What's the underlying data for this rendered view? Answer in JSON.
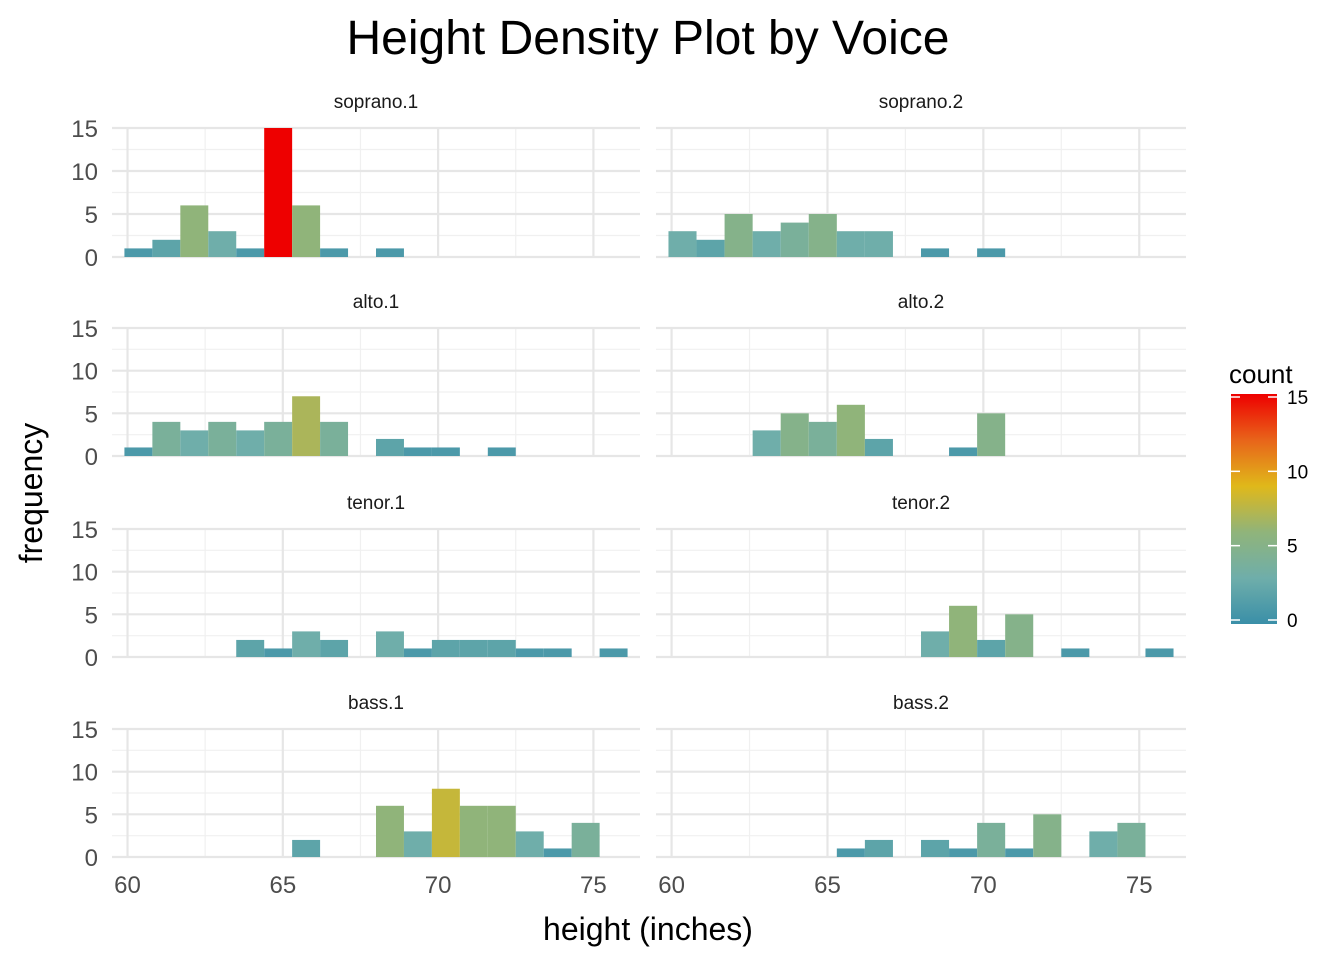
{
  "chart_data": {
    "type": "bar",
    "title": "Height Density Plot by Voice",
    "xlabel": "height (inches)",
    "ylabel": "frequency",
    "xlim": [
      59.5,
      76.5
    ],
    "ylim": [
      0,
      15
    ],
    "x_ticks": [
      60,
      65,
      70,
      75
    ],
    "y_ticks": [
      0,
      5,
      10,
      15
    ],
    "bin_width": 0.9,
    "bin_start": 59.5,
    "legend": {
      "title": "count",
      "placement": "right",
      "min": 0,
      "max": 15,
      "ticks": [
        0,
        5,
        10,
        15
      ],
      "colors": [
        "#3a8fa8",
        "#6faeaa",
        "#90b47a",
        "#e0b81a",
        "#e8641a",
        "#ee0000"
      ]
    },
    "grid": true,
    "panels": [
      {
        "name": "soprano.1",
        "bins": [
          {
            "x": 60.35,
            "count": 1
          },
          {
            "x": 61.25,
            "count": 2
          },
          {
            "x": 62.15,
            "count": 6
          },
          {
            "x": 63.05,
            "count": 3
          },
          {
            "x": 63.95,
            "count": 1
          },
          {
            "x": 64.85,
            "count": 15
          },
          {
            "x": 65.75,
            "count": 6
          },
          {
            "x": 66.65,
            "count": 1
          },
          {
            "x": 68.45,
            "count": 1
          }
        ]
      },
      {
        "name": "soprano.2",
        "bins": [
          {
            "x": 60.35,
            "count": 3
          },
          {
            "x": 61.25,
            "count": 2
          },
          {
            "x": 62.15,
            "count": 5
          },
          {
            "x": 63.05,
            "count": 3
          },
          {
            "x": 63.95,
            "count": 4
          },
          {
            "x": 64.85,
            "count": 5
          },
          {
            "x": 65.75,
            "count": 3
          },
          {
            "x": 66.65,
            "count": 3
          },
          {
            "x": 68.45,
            "count": 1
          },
          {
            "x": 70.25,
            "count": 1
          }
        ]
      },
      {
        "name": "alto.1",
        "bins": [
          {
            "x": 60.35,
            "count": 1
          },
          {
            "x": 61.25,
            "count": 4
          },
          {
            "x": 62.15,
            "count": 3
          },
          {
            "x": 63.05,
            "count": 4
          },
          {
            "x": 63.95,
            "count": 3
          },
          {
            "x": 64.85,
            "count": 4
          },
          {
            "x": 65.75,
            "count": 7
          },
          {
            "x": 66.65,
            "count": 4
          },
          {
            "x": 68.45,
            "count": 2
          },
          {
            "x": 69.35,
            "count": 1
          },
          {
            "x": 70.25,
            "count": 1
          },
          {
            "x": 72.05,
            "count": 1
          }
        ]
      },
      {
        "name": "alto.2",
        "bins": [
          {
            "x": 63.05,
            "count": 3
          },
          {
            "x": 63.95,
            "count": 5
          },
          {
            "x": 64.85,
            "count": 4
          },
          {
            "x": 65.75,
            "count": 6
          },
          {
            "x": 66.65,
            "count": 2
          },
          {
            "x": 69.35,
            "count": 1
          },
          {
            "x": 70.25,
            "count": 5
          }
        ]
      },
      {
        "name": "tenor.1",
        "bins": [
          {
            "x": 63.95,
            "count": 2
          },
          {
            "x": 64.85,
            "count": 1
          },
          {
            "x": 65.75,
            "count": 3
          },
          {
            "x": 66.65,
            "count": 2
          },
          {
            "x": 68.45,
            "count": 3
          },
          {
            "x": 69.35,
            "count": 1
          },
          {
            "x": 70.25,
            "count": 2
          },
          {
            "x": 71.15,
            "count": 2
          },
          {
            "x": 72.05,
            "count": 2
          },
          {
            "x": 72.95,
            "count": 1
          },
          {
            "x": 73.85,
            "count": 1
          },
          {
            "x": 75.65,
            "count": 1
          }
        ]
      },
      {
        "name": "tenor.2",
        "bins": [
          {
            "x": 68.45,
            "count": 3
          },
          {
            "x": 69.35,
            "count": 6
          },
          {
            "x": 70.25,
            "count": 2
          },
          {
            "x": 71.15,
            "count": 5
          },
          {
            "x": 72.95,
            "count": 1
          },
          {
            "x": 75.65,
            "count": 1
          }
        ]
      },
      {
        "name": "bass.1",
        "bins": [
          {
            "x": 65.75,
            "count": 2
          },
          {
            "x": 68.45,
            "count": 6
          },
          {
            "x": 69.35,
            "count": 3
          },
          {
            "x": 70.25,
            "count": 8
          },
          {
            "x": 71.15,
            "count": 6
          },
          {
            "x": 72.05,
            "count": 6
          },
          {
            "x": 72.95,
            "count": 3
          },
          {
            "x": 73.85,
            "count": 1
          },
          {
            "x": 74.75,
            "count": 4
          }
        ]
      },
      {
        "name": "bass.2",
        "bins": [
          {
            "x": 65.75,
            "count": 1
          },
          {
            "x": 66.65,
            "count": 2
          },
          {
            "x": 68.45,
            "count": 2
          },
          {
            "x": 69.35,
            "count": 1
          },
          {
            "x": 70.25,
            "count": 4
          },
          {
            "x": 71.15,
            "count": 1
          },
          {
            "x": 72.05,
            "count": 5
          },
          {
            "x": 73.85,
            "count": 3
          },
          {
            "x": 74.75,
            "count": 4
          }
        ]
      }
    ]
  }
}
